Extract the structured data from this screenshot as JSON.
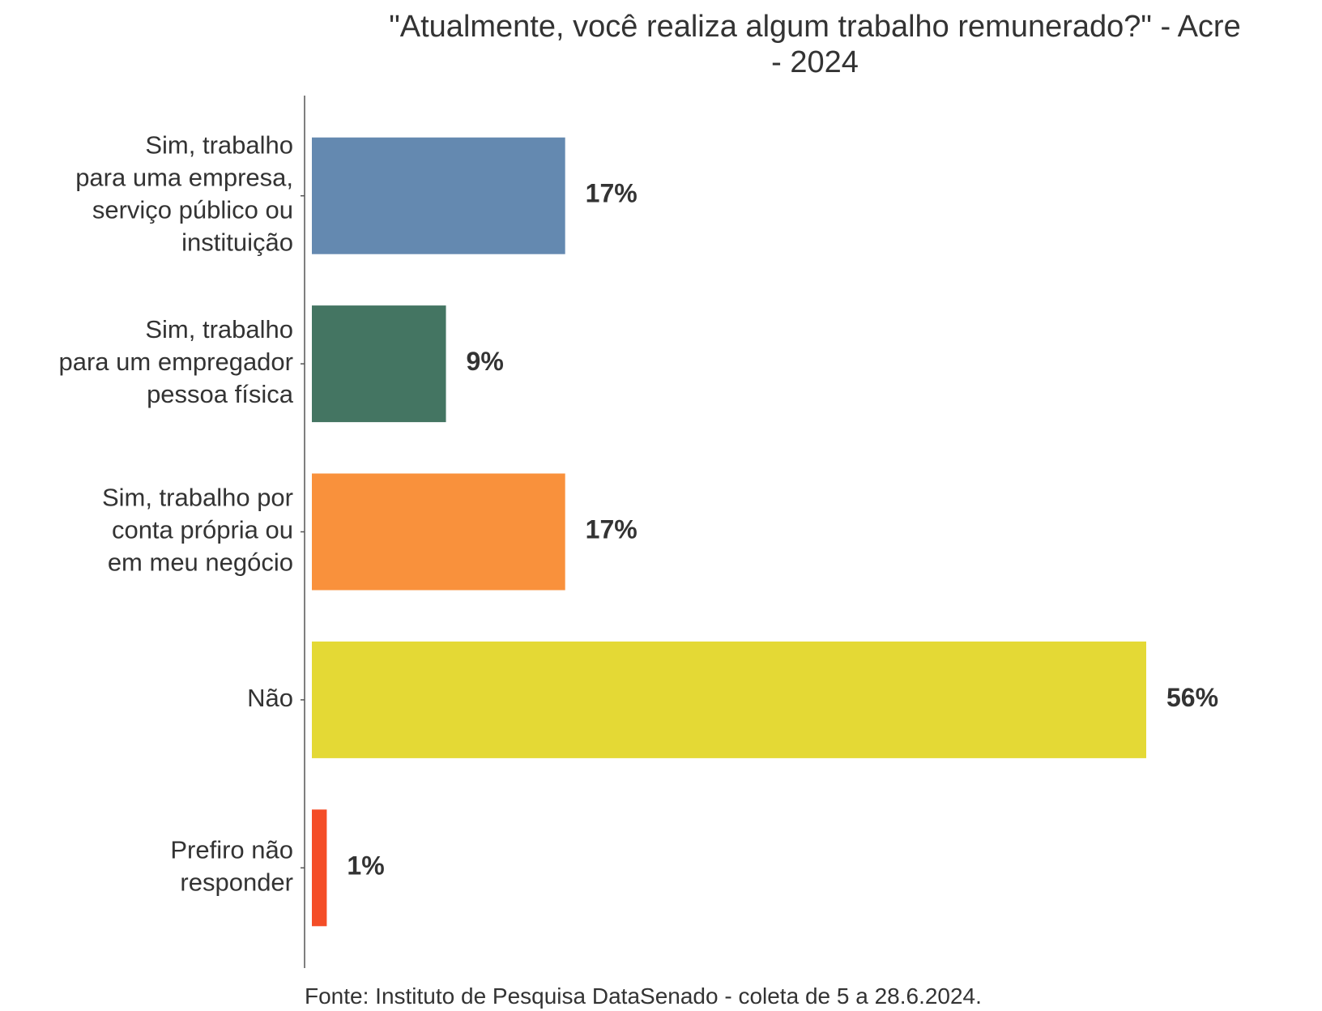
{
  "chart_data": {
    "type": "barh",
    "title": "\"Atualmente, você realiza algum trabalho remunerado?\" - Acre\n- 2024",
    "categories": [
      "Sim, trabalho\npara uma empresa,\nserviço público ou\ninstituição",
      "Sim, trabalho\npara um empregador\npessoa física",
      "Sim, trabalho por\nconta própria ou\nem meu negócio",
      "Não",
      "Prefiro não\nresponder"
    ],
    "values": [
      17,
      9,
      17,
      56,
      1
    ],
    "value_labels": [
      "17%",
      "9%",
      "17%",
      "56%",
      "1%"
    ],
    "colors": [
      "#6489b0",
      "#447562",
      "#f9913c",
      "#e4d935",
      "#f44d27"
    ],
    "source": "Fonte: Instituto de Pesquisa DataSenado - coleta de 5 a 28.6.2024."
  }
}
